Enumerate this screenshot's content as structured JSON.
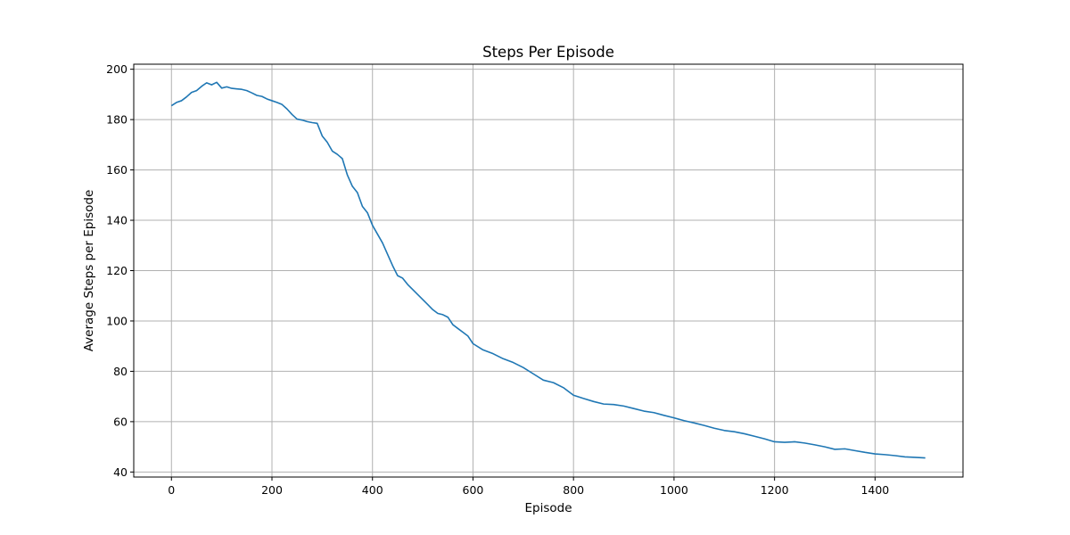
{
  "chart_data": {
    "type": "line",
    "title": "Steps Per Episode",
    "xlabel": "Episode",
    "ylabel": "Average Steps per Episode",
    "xlim": [
      -75,
      1575
    ],
    "ylim": [
      38,
      202
    ],
    "xticks": [
      0,
      200,
      400,
      600,
      800,
      1000,
      1200,
      1400
    ],
    "yticks": [
      40,
      60,
      80,
      100,
      120,
      140,
      160,
      180,
      200
    ],
    "grid": true,
    "legend": "none",
    "series": [
      {
        "color": "#1f77b4",
        "x": [
          0,
          10,
          20,
          30,
          40,
          50,
          60,
          70,
          80,
          90,
          100,
          110,
          120,
          130,
          140,
          150,
          160,
          170,
          180,
          190,
          200,
          210,
          220,
          230,
          240,
          250,
          260,
          270,
          280,
          290,
          300,
          310,
          320,
          330,
          340,
          350,
          360,
          370,
          380,
          390,
          400,
          410,
          420,
          430,
          440,
          450,
          460,
          470,
          480,
          490,
          500,
          510,
          520,
          530,
          540,
          550,
          560,
          570,
          580,
          590,
          600,
          620,
          640,
          660,
          680,
          700,
          720,
          740,
          760,
          780,
          800,
          820,
          840,
          860,
          880,
          900,
          920,
          940,
          960,
          980,
          1000,
          1020,
          1040,
          1060,
          1080,
          1100,
          1120,
          1140,
          1160,
          1180,
          1200,
          1220,
          1240,
          1260,
          1280,
          1300,
          1320,
          1340,
          1360,
          1380,
          1400,
          1420,
          1440,
          1460,
          1480,
          1500
        ],
        "y": [
          185.5,
          186.8,
          187.5,
          189.0,
          190.8,
          191.5,
          193.2,
          194.6,
          193.8,
          194.8,
          192.5,
          193.0,
          192.4,
          192.2,
          192.0,
          191.5,
          190.6,
          189.6,
          189.2,
          188.2,
          187.5,
          186.8,
          186.0,
          184.2,
          182.0,
          180.2,
          179.8,
          179.2,
          178.8,
          178.5,
          173.5,
          171.0,
          167.5,
          166.2,
          164.5,
          158.0,
          153.5,
          151.0,
          145.5,
          143.0,
          138.0,
          134.5,
          131.0,
          126.5,
          122.0,
          118.0,
          117.0,
          114.5,
          112.5,
          110.5,
          108.5,
          106.5,
          104.5,
          103.0,
          102.5,
          101.5,
          98.5,
          97.0,
          95.5,
          94.0,
          91.0,
          88.5,
          87.0,
          85.0,
          83.5,
          81.5,
          79.0,
          76.5,
          75.5,
          73.5,
          70.5,
          69.2,
          68.0,
          67.0,
          66.8,
          66.2,
          65.2,
          64.2,
          63.6,
          62.5,
          61.5,
          60.4,
          59.5,
          58.5,
          57.4,
          56.5,
          56.0,
          55.2,
          54.2,
          53.2,
          52.0,
          51.8,
          52.0,
          51.5,
          50.8,
          50.0,
          49.0,
          49.2,
          48.5,
          47.8,
          47.2,
          46.9,
          46.5,
          46.0,
          45.8,
          45.6
        ]
      }
    ]
  }
}
